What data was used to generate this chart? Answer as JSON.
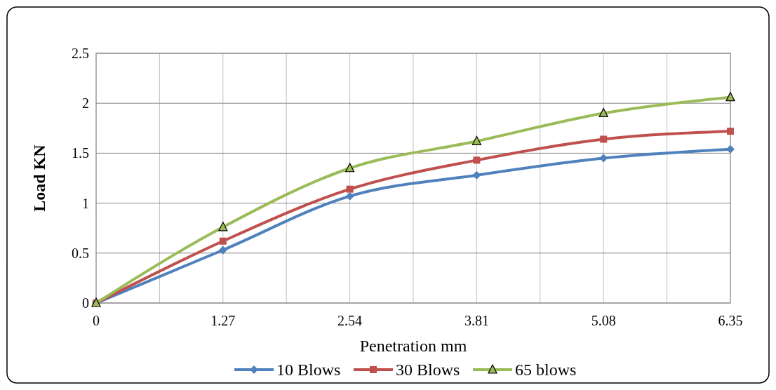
{
  "chart_data": {
    "type": "line",
    "xlabel": "Penetration mm",
    "ylabel": "Load KN",
    "x": [
      0,
      1.27,
      2.54,
      3.81,
      5.08,
      6.35
    ],
    "series": [
      {
        "name": "10 Blows",
        "color": "#4f81bd",
        "marker": "diamond",
        "values": [
          0,
          0.53,
          1.07,
          1.28,
          1.45,
          1.54
        ]
      },
      {
        "name": "30 Blows",
        "color": "#c0504d",
        "marker": "square",
        "values": [
          0,
          0.62,
          1.14,
          1.43,
          1.64,
          1.72
        ]
      },
      {
        "name": "65 blows",
        "color": "#9bbb59",
        "marker": "triangle",
        "values": [
          0,
          0.76,
          1.35,
          1.62,
          1.9,
          2.06
        ]
      }
    ],
    "xlim": [
      0,
      6.35
    ],
    "xticks": [
      0,
      {
        "value": 0.635,
        "label": null
      },
      1.27,
      {
        "value": 1.905,
        "label": null
      },
      2.54,
      {
        "value": 3.175,
        "label": null
      },
      3.81,
      {
        "value": 4.445,
        "label": null
      },
      5.08,
      {
        "value": 5.715,
        "label": null
      },
      6.35
    ],
    "ylim": [
      0,
      2.5
    ],
    "yticks": [
      0,
      0.5,
      1,
      1.5,
      2,
      2.5
    ],
    "grid": true,
    "legend": "bottom",
    "line_style": "solid"
  }
}
